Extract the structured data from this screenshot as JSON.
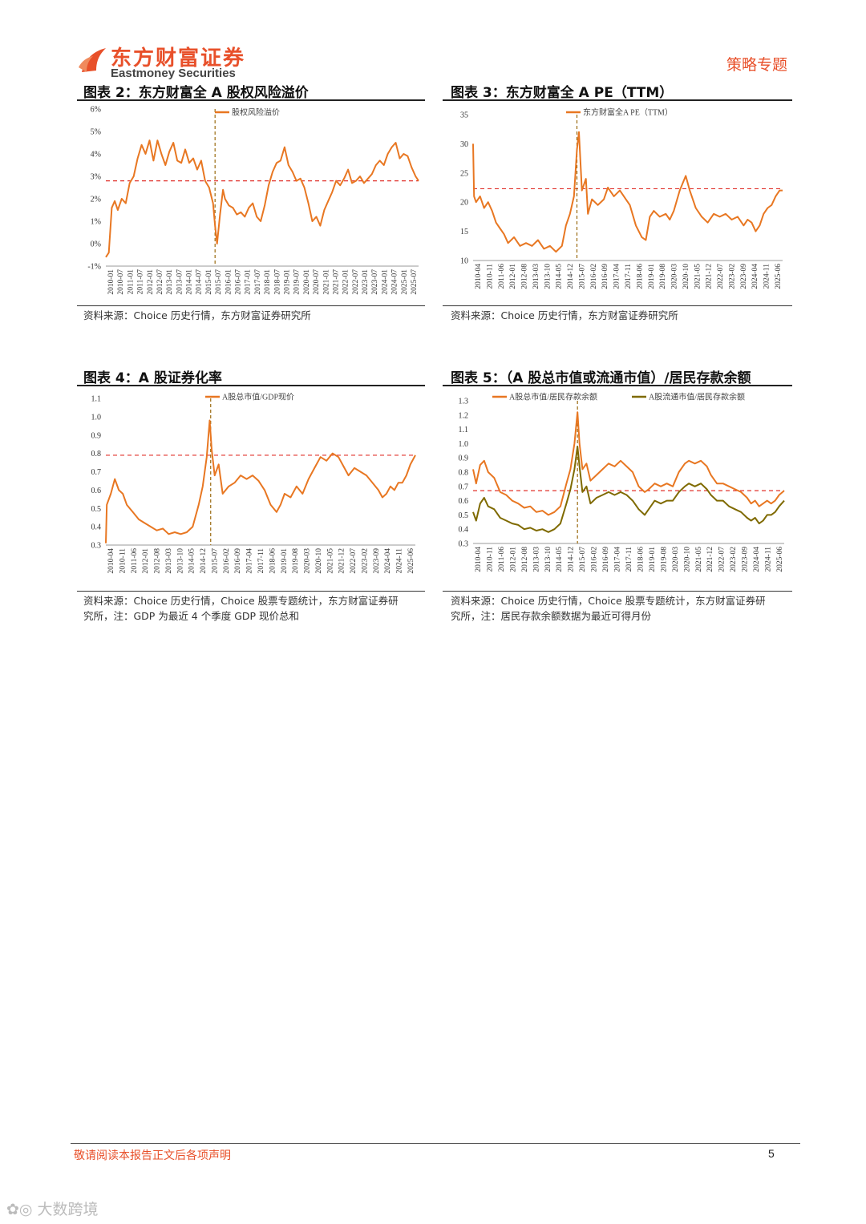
{
  "header": {
    "logo_cn": "东方财富证券",
    "logo_en": "Eastmoney Securities",
    "doc_type": "策略专题",
    "brand_color": "#e8502a"
  },
  "figures": [
    {
      "title": "图表 2：东方财富全 A 股权风险溢价",
      "source": [
        "资料来源：Choice 历史行情，东方财富证券研究所"
      ]
    },
    {
      "title": "图表 3：东方财富全 A PE（TTM）",
      "source": [
        "资料来源：Choice 历史行情，东方财富证券研究所"
      ]
    },
    {
      "title": "图表 4：A 股证券化率",
      "source": [
        "资料来源：Choice 历史行情，Choice 股票专题统计，东方财富证券研",
        "究所，注：GDP 为最近 4 个季度 GDP 现价总和"
      ]
    },
    {
      "title": "图表 5：（A 股总市值或流通市值）/居民存款余额",
      "source": [
        "资料来源：Choice 历史行情，Choice 股票专题统计，东方财富证券研",
        "究所，注：居民存款余额数据为最近可得月份"
      ]
    }
  ],
  "chart_data": [
    {
      "type": "line",
      "x_ticks": [
        "2010-01",
        "2010-07",
        "2011-01",
        "2011-07",
        "2012-01",
        "2012-07",
        "2013-01",
        "2013-07",
        "2014-01",
        "2014-07",
        "2015-01",
        "2015-07",
        "2016-01",
        "2016-07",
        "2017-01",
        "2017-07",
        "2018-01",
        "2018-07",
        "2019-01",
        "2019-07",
        "2020-01",
        "2020-07",
        "2021-01",
        "2021-07",
        "2022-01",
        "2022-07",
        "2023-01",
        "2023-07",
        "2024-01",
        "2024-07",
        "2025-01",
        "2025-07"
      ],
      "y_ticks": [
        "-1%",
        "0%",
        "1%",
        "2%",
        "3%",
        "4%",
        "5%",
        "6%"
      ],
      "ylim": [
        -1,
        6
      ],
      "x_range": [
        2010.0,
        2025.75
      ],
      "series": [
        {
          "name": "股权风险溢价",
          "color": "#e87722",
          "x": [
            2010.0,
            2010.15,
            2010.3,
            2010.45,
            2010.6,
            2010.8,
            2011.0,
            2011.2,
            2011.4,
            2011.6,
            2011.8,
            2012.0,
            2012.2,
            2012.4,
            2012.6,
            2012.8,
            2013.0,
            2013.2,
            2013.4,
            2013.6,
            2013.8,
            2014.0,
            2014.2,
            2014.4,
            2014.6,
            2014.8,
            2015.0,
            2015.2,
            2015.4,
            2015.5,
            2015.6,
            2015.75,
            2015.9,
            2016.0,
            2016.2,
            2016.4,
            2016.6,
            2016.8,
            2017.0,
            2017.2,
            2017.4,
            2017.6,
            2017.8,
            2018.0,
            2018.2,
            2018.4,
            2018.6,
            2018.8,
            2019.0,
            2019.2,
            2019.4,
            2019.6,
            2019.8,
            2020.0,
            2020.2,
            2020.4,
            2020.6,
            2020.8,
            2021.0,
            2021.2,
            2021.4,
            2021.6,
            2021.8,
            2022.0,
            2022.2,
            2022.4,
            2022.6,
            2022.8,
            2023.0,
            2023.2,
            2023.4,
            2023.6,
            2023.8,
            2024.0,
            2024.2,
            2024.4,
            2024.6,
            2024.8,
            2025.0,
            2025.2,
            2025.4,
            2025.6,
            2025.75
          ],
          "y": [
            -0.6,
            -0.4,
            1.6,
            1.9,
            1.5,
            2.0,
            1.8,
            2.7,
            3.0,
            3.8,
            4.4,
            4.0,
            4.6,
            3.7,
            4.6,
            4.0,
            3.5,
            4.1,
            4.5,
            3.7,
            3.6,
            4.2,
            3.6,
            3.8,
            3.3,
            3.7,
            2.8,
            2.5,
            1.8,
            0.8,
            0.0,
            1.3,
            2.4,
            2.0,
            1.7,
            1.6,
            1.3,
            1.4,
            1.2,
            1.6,
            1.8,
            1.2,
            1.0,
            1.7,
            2.6,
            3.2,
            3.6,
            3.7,
            4.3,
            3.5,
            3.2,
            2.8,
            2.9,
            2.5,
            1.8,
            1.0,
            1.2,
            0.8,
            1.5,
            1.9,
            2.3,
            2.8,
            2.6,
            2.9,
            3.3,
            2.7,
            2.8,
            3.0,
            2.7,
            2.9,
            3.1,
            3.5,
            3.7,
            3.5,
            4.0,
            4.3,
            4.5,
            3.8,
            4.0,
            3.9,
            3.4,
            3.0,
            2.8
          ]
        }
      ],
      "hline": 2.8,
      "vline": 2015.5
    },
    {
      "type": "line",
      "x_ticks": [
        "2010-04",
        "2010-11",
        "2011-06",
        "2012-01",
        "2012-08",
        "2013-03",
        "2013-10",
        "2014-05",
        "2014-12",
        "2015-07",
        "2016-02",
        "2016-09",
        "2017-04",
        "2017-11",
        "2018-06",
        "2019-01",
        "2019-08",
        "2020-03",
        "2020-10",
        "2021-05",
        "2021-12",
        "2022-07",
        "2023-02",
        "2023-09",
        "2024-04",
        "2024-11",
        "2025-06"
      ],
      "y_ticks": [
        "10",
        "15",
        "20",
        "25",
        "30",
        "35"
      ],
      "ylim": [
        10,
        35
      ],
      "x_range": [
        2010.25,
        2025.75
      ],
      "series": [
        {
          "name": "东方财富全A PE（TTM）",
          "color": "#e87722",
          "x": [
            2010.25,
            2010.3,
            2010.4,
            2010.6,
            2010.8,
            2011.0,
            2011.2,
            2011.4,
            2011.6,
            2011.8,
            2012.0,
            2012.3,
            2012.6,
            2012.9,
            2013.2,
            2013.5,
            2013.8,
            2014.1,
            2014.4,
            2014.7,
            2014.9,
            2015.1,
            2015.3,
            2015.45,
            2015.55,
            2015.7,
            2015.9,
            2016.0,
            2016.2,
            2016.5,
            2016.8,
            2017.0,
            2017.3,
            2017.6,
            2017.9,
            2018.1,
            2018.4,
            2018.7,
            2018.9,
            2019.1,
            2019.3,
            2019.6,
            2019.9,
            2020.1,
            2020.3,
            2020.6,
            2020.9,
            2021.1,
            2021.4,
            2021.7,
            2022.0,
            2022.3,
            2022.6,
            2022.9,
            2023.2,
            2023.5,
            2023.8,
            2024.0,
            2024.2,
            2024.4,
            2024.6,
            2024.8,
            2025.0,
            2025.2,
            2025.4,
            2025.6,
            2025.75
          ],
          "y": [
            30.0,
            21.0,
            20.0,
            21.0,
            19.0,
            20.0,
            18.5,
            16.5,
            15.5,
            14.5,
            13.0,
            14.0,
            12.5,
            13.0,
            12.5,
            13.5,
            12.0,
            12.5,
            11.5,
            12.5,
            16.0,
            18.0,
            21.0,
            29.0,
            32.0,
            22.0,
            24.0,
            18.0,
            20.5,
            19.5,
            20.5,
            22.5,
            21.0,
            22.0,
            20.5,
            19.5,
            16.0,
            14.0,
            13.5,
            17.5,
            18.5,
            17.5,
            18.0,
            17.0,
            18.5,
            22.0,
            24.5,
            22.0,
            19.0,
            17.5,
            16.5,
            18.0,
            17.5,
            18.0,
            17.0,
            17.5,
            16.0,
            17.0,
            16.5,
            15.0,
            16.0,
            18.0,
            19.0,
            19.5,
            21.0,
            22.0,
            22.0
          ]
        }
      ],
      "hline": 22.3,
      "vline": 2015.45
    },
    {
      "type": "line",
      "x_ticks": [
        "2010-04",
        "2010-11",
        "2011-06",
        "2012-01",
        "2012-08",
        "2013-03",
        "2013-10",
        "2014-05",
        "2014-12",
        "2015-07",
        "2016-02",
        "2016-09",
        "2017-04",
        "2017-11",
        "2018-06",
        "2019-01",
        "2019-08",
        "2020-03",
        "2020-10",
        "2021-05",
        "2021-12",
        "2022-07",
        "2023-02",
        "2023-09",
        "2024-04",
        "2024-11",
        "2025-06"
      ],
      "y_ticks": [
        "0.3",
        "0.4",
        "0.5",
        "0.6",
        "0.7",
        "0.8",
        "0.9",
        "1.0",
        "1.1"
      ],
      "ylim": [
        0.3,
        1.1
      ],
      "x_range": [
        2010.25,
        2025.75
      ],
      "series": [
        {
          "name": "A股总市值/GDP现价",
          "color": "#e87722",
          "x": [
            2010.25,
            2010.3,
            2010.5,
            2010.7,
            2010.9,
            2011.1,
            2011.3,
            2011.6,
            2011.9,
            2012.2,
            2012.5,
            2012.8,
            2013.1,
            2013.4,
            2013.7,
            2014.0,
            2014.3,
            2014.6,
            2014.9,
            2015.1,
            2015.3,
            2015.45,
            2015.55,
            2015.7,
            2015.9,
            2016.1,
            2016.4,
            2016.7,
            2017.0,
            2017.3,
            2017.6,
            2017.9,
            2018.2,
            2018.5,
            2018.8,
            2019.0,
            2019.2,
            2019.5,
            2019.8,
            2020.1,
            2020.4,
            2020.7,
            2021.0,
            2021.3,
            2021.6,
            2021.9,
            2022.1,
            2022.4,
            2022.7,
            2023.0,
            2023.3,
            2023.6,
            2023.9,
            2024.1,
            2024.3,
            2024.5,
            2024.7,
            2024.9,
            2025.1,
            2025.3,
            2025.5,
            2025.75
          ],
          "y": [
            0.31,
            0.52,
            0.58,
            0.66,
            0.6,
            0.58,
            0.52,
            0.48,
            0.44,
            0.42,
            0.4,
            0.38,
            0.39,
            0.36,
            0.37,
            0.36,
            0.37,
            0.4,
            0.52,
            0.62,
            0.78,
            0.98,
            0.82,
            0.68,
            0.74,
            0.58,
            0.62,
            0.64,
            0.68,
            0.66,
            0.68,
            0.65,
            0.6,
            0.52,
            0.48,
            0.52,
            0.58,
            0.56,
            0.62,
            0.58,
            0.66,
            0.72,
            0.78,
            0.76,
            0.8,
            0.78,
            0.74,
            0.68,
            0.72,
            0.7,
            0.68,
            0.64,
            0.6,
            0.56,
            0.58,
            0.62,
            0.6,
            0.64,
            0.64,
            0.68,
            0.74,
            0.79
          ]
        }
      ],
      "hline": 0.79,
      "vline": 2015.5
    },
    {
      "type": "line",
      "x_ticks": [
        "2010-04",
        "2010-11",
        "2011-06",
        "2012-01",
        "2012-08",
        "2013-03",
        "2013-10",
        "2014-05",
        "2014-12",
        "2015-07",
        "2016-02",
        "2016-09",
        "2017-04",
        "2017-11",
        "2018-06",
        "2019-01",
        "2019-08",
        "2020-03",
        "2020-10",
        "2021-05",
        "2021-12",
        "2022-07",
        "2023-02",
        "2023-09",
        "2024-04",
        "2024-11",
        "2025-06"
      ],
      "y_ticks": [
        "0.3",
        "0.4",
        "0.5",
        "0.6",
        "0.7",
        "0.8",
        "0.9",
        "1.0",
        "1.1",
        "1.2",
        "1.3"
      ],
      "ylim": [
        0.3,
        1.3
      ],
      "x_range": [
        2010.25,
        2025.75
      ],
      "series": [
        {
          "name": "A股总市值/居民存款余额",
          "color": "#e87722",
          "x": [
            2010.25,
            2010.4,
            2010.6,
            2010.8,
            2011.0,
            2011.3,
            2011.6,
            2011.9,
            2012.2,
            2012.5,
            2012.8,
            2013.1,
            2013.4,
            2013.7,
            2014.0,
            2014.3,
            2014.6,
            2014.9,
            2015.1,
            2015.3,
            2015.45,
            2015.55,
            2015.7,
            2015.9,
            2016.1,
            2016.4,
            2016.7,
            2017.0,
            2017.3,
            2017.6,
            2017.9,
            2018.2,
            2018.5,
            2018.8,
            2019.0,
            2019.3,
            2019.6,
            2019.9,
            2020.2,
            2020.5,
            2020.8,
            2021.0,
            2021.3,
            2021.6,
            2021.9,
            2022.1,
            2022.4,
            2022.7,
            2023.0,
            2023.3,
            2023.6,
            2023.9,
            2024.1,
            2024.3,
            2024.5,
            2024.7,
            2024.9,
            2025.1,
            2025.3,
            2025.5,
            2025.75
          ],
          "y": [
            0.82,
            0.72,
            0.85,
            0.88,
            0.8,
            0.76,
            0.66,
            0.64,
            0.6,
            0.58,
            0.55,
            0.56,
            0.52,
            0.53,
            0.5,
            0.52,
            0.56,
            0.72,
            0.82,
            1.0,
            1.22,
            1.0,
            0.82,
            0.86,
            0.74,
            0.78,
            0.82,
            0.86,
            0.84,
            0.88,
            0.84,
            0.8,
            0.7,
            0.66,
            0.68,
            0.72,
            0.7,
            0.72,
            0.7,
            0.8,
            0.86,
            0.88,
            0.86,
            0.88,
            0.84,
            0.78,
            0.72,
            0.72,
            0.7,
            0.68,
            0.66,
            0.62,
            0.58,
            0.6,
            0.56,
            0.58,
            0.6,
            0.58,
            0.6,
            0.64,
            0.67
          ]
        },
        {
          "name": "A股流通市值/居民存款余额",
          "color": "#7f6a00",
          "x": [
            2010.25,
            2010.4,
            2010.6,
            2010.8,
            2011.0,
            2011.3,
            2011.6,
            2011.9,
            2012.2,
            2012.5,
            2012.8,
            2013.1,
            2013.4,
            2013.7,
            2014.0,
            2014.3,
            2014.6,
            2014.9,
            2015.1,
            2015.3,
            2015.45,
            2015.55,
            2015.7,
            2015.9,
            2016.1,
            2016.4,
            2016.7,
            2017.0,
            2017.3,
            2017.6,
            2017.9,
            2018.2,
            2018.5,
            2018.8,
            2019.0,
            2019.3,
            2019.6,
            2019.9,
            2020.2,
            2020.5,
            2020.8,
            2021.0,
            2021.3,
            2021.6,
            2021.9,
            2022.1,
            2022.4,
            2022.7,
            2023.0,
            2023.3,
            2023.6,
            2023.9,
            2024.1,
            2024.3,
            2024.5,
            2024.7,
            2024.9,
            2025.1,
            2025.3,
            2025.5,
            2025.75
          ],
          "y": [
            0.52,
            0.46,
            0.58,
            0.62,
            0.56,
            0.54,
            0.48,
            0.46,
            0.44,
            0.43,
            0.4,
            0.41,
            0.39,
            0.4,
            0.38,
            0.4,
            0.44,
            0.58,
            0.68,
            0.82,
            0.98,
            0.84,
            0.66,
            0.7,
            0.58,
            0.62,
            0.64,
            0.66,
            0.64,
            0.66,
            0.64,
            0.6,
            0.54,
            0.5,
            0.54,
            0.6,
            0.58,
            0.6,
            0.6,
            0.66,
            0.7,
            0.72,
            0.7,
            0.72,
            0.68,
            0.64,
            0.6,
            0.6,
            0.56,
            0.54,
            0.52,
            0.48,
            0.46,
            0.48,
            0.44,
            0.46,
            0.5,
            0.5,
            0.52,
            0.56,
            0.6
          ]
        }
      ],
      "hline": 0.67,
      "vline": 2015.45
    }
  ],
  "footer": {
    "disclaimer": "敬请阅读本报告正文后各项声明",
    "page": "5"
  },
  "watermark": "大数跨境"
}
